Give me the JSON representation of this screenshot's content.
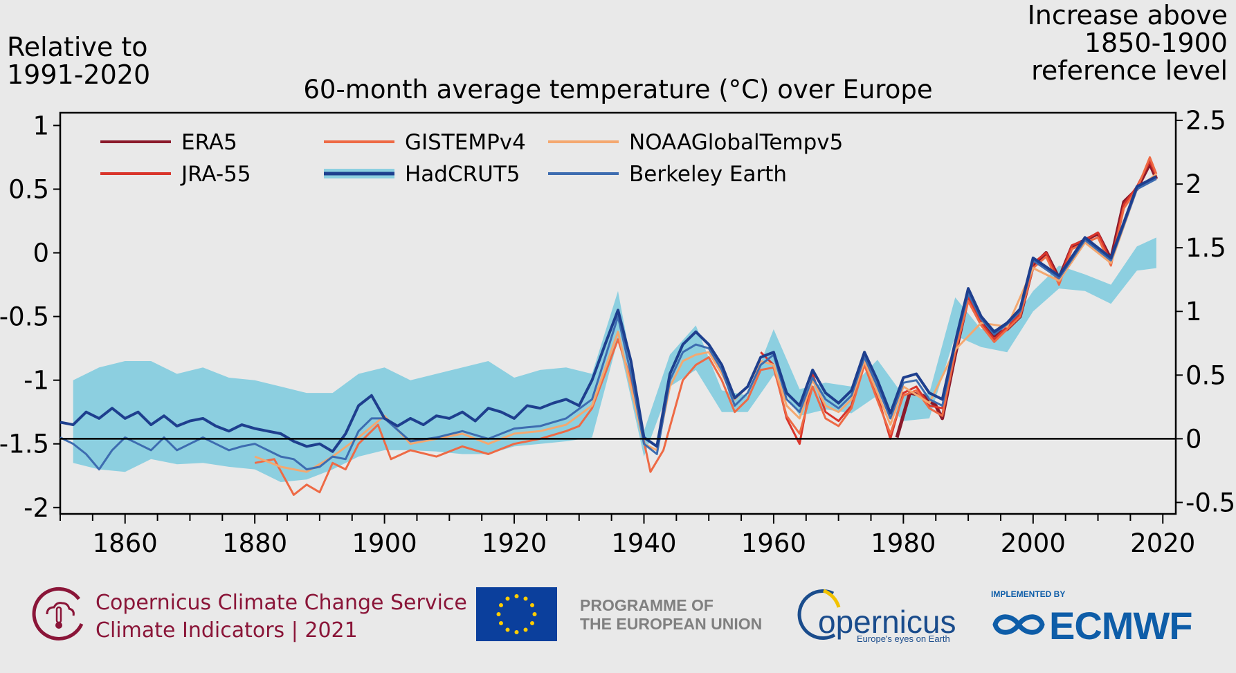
{
  "header": {
    "left_axis_label": [
      "Relative to",
      "1991-2020"
    ],
    "right_axis_label": [
      "Increase above",
      "1850-1900",
      "reference level"
    ]
  },
  "chart_data": {
    "type": "line",
    "title": "60-month average temperature (°C) over Europe",
    "xlabel": "",
    "ylabel": "Relative to 1991-2020",
    "y2label": "Increase above 1850-1900 reference level",
    "xlim": [
      1850,
      2022
    ],
    "ylim": [
      -2.05,
      1.1
    ],
    "y2_offset": 1.46,
    "x_ticks": [
      1860,
      1880,
      1900,
      1920,
      1940,
      1960,
      1980,
      2000,
      2020
    ],
    "y_ticks": [
      1,
      0.5,
      0,
      -0.5,
      -1,
      -1.5,
      -2
    ],
    "y_tick_labels": [
      "1",
      "0.5",
      "0",
      "-0.5",
      "-1",
      "-1.5",
      "-2"
    ],
    "y2_ticks": [
      2.5,
      2,
      1.5,
      1,
      0.5,
      0,
      -0.5
    ],
    "y2_tick_labels": [
      "2.5",
      "2",
      "1.5",
      "1",
      "0.5",
      "0",
      "-0.5"
    ],
    "reference_line_y": -1.46,
    "grid": false,
    "legend_position": "top-left",
    "legend": [
      {
        "name": "ERA5",
        "color": "#8b1a2b"
      },
      {
        "name": "JRA-55",
        "color": "#d9352b"
      },
      {
        "name": "GISTEMPv4",
        "color": "#ee6a45"
      },
      {
        "name": "HadCRUT5",
        "color": "#1e3f8e",
        "band_color": "#8ccfe0"
      },
      {
        "name": "NOAAGlobalTempv5",
        "color": "#f4a870"
      },
      {
        "name": "Berkeley Earth",
        "color": "#3d6cb0"
      }
    ],
    "uncertainty_band": {
      "series": "HadCRUT5",
      "x": [
        1852,
        1856,
        1860,
        1864,
        1868,
        1872,
        1876,
        1880,
        1884,
        1888,
        1892,
        1896,
        1900,
        1904,
        1908,
        1912,
        1916,
        1920,
        1924,
        1928,
        1932,
        1936,
        1940,
        1944,
        1948,
        1952,
        1956,
        1960,
        1964,
        1968,
        1972,
        1976,
        1980,
        1984,
        1988,
        1992,
        1996,
        2000,
        2004,
        2008,
        2012,
        2016,
        2019
      ],
      "lower": [
        -1.65,
        -1.7,
        -1.72,
        -1.62,
        -1.66,
        -1.65,
        -1.68,
        -1.7,
        -1.8,
        -1.78,
        -1.7,
        -1.6,
        -1.55,
        -1.55,
        -1.56,
        -1.58,
        -1.58,
        -1.52,
        -1.5,
        -1.48,
        -1.45,
        -0.68,
        -1.6,
        -1.05,
        -0.92,
        -1.25,
        -1.25,
        -0.96,
        -1.28,
        -1.23,
        -1.26,
        -1.12,
        -1.32,
        -1.3,
        -0.65,
        -0.74,
        -0.78,
        -0.46,
        -0.28,
        -0.3,
        -0.4,
        -0.14,
        -0.12
      ],
      "upper": [
        -1.0,
        -0.9,
        -0.85,
        -0.85,
        -0.95,
        -0.9,
        -0.98,
        -1.0,
        -1.05,
        -1.1,
        -1.1,
        -0.95,
        -0.9,
        -1.0,
        -0.95,
        -0.9,
        -0.85,
        -0.98,
        -0.92,
        -0.9,
        -0.95,
        -0.3,
        -1.4,
        -0.8,
        -0.57,
        -1.08,
        -1.12,
        -0.6,
        -1.07,
        -1.02,
        -1.05,
        -0.84,
        -1.12,
        -1.1,
        -0.35,
        -0.6,
        -0.6,
        -0.3,
        -0.1,
        -0.17,
        -0.25,
        0.05,
        0.12
      ]
    },
    "series": [
      {
        "name": "ERA5",
        "color": "#8b1a2b",
        "width": 5,
        "x": [
          1979,
          1981,
          1983,
          1985,
          1986,
          1988,
          1990,
          1992,
          1994,
          1996,
          1998,
          2000,
          2002,
          2004,
          2006,
          2008,
          2010,
          2012,
          2014,
          2016,
          2018,
          2019
        ],
        "y": [
          -1.45,
          -1.1,
          -1.12,
          -1.2,
          -1.3,
          -0.8,
          -0.35,
          -0.55,
          -0.65,
          -0.6,
          -0.5,
          -0.1,
          0.0,
          -0.2,
          0.05,
          0.1,
          0.15,
          -0.05,
          0.4,
          0.5,
          0.7,
          0.58
        ]
      },
      {
        "name": "JRA-55",
        "color": "#d9352b",
        "width": 3,
        "x": [
          1958,
          1960,
          1962,
          1964,
          1966,
          1968,
          1970,
          1972,
          1974,
          1976,
          1978,
          1980,
          1982,
          1984,
          1986,
          1988,
          1990,
          1992,
          1994,
          1996,
          1998,
          2000,
          2002,
          2004,
          2006,
          2008,
          2010,
          2012,
          2014,
          2016,
          2018,
          2019
        ],
        "y": [
          -0.78,
          -0.88,
          -1.3,
          -1.5,
          -0.95,
          -1.25,
          -1.32,
          -1.2,
          -0.82,
          -1.12,
          -1.46,
          -1.1,
          -1.05,
          -1.2,
          -1.22,
          -0.75,
          -0.35,
          -0.55,
          -0.68,
          -0.58,
          -0.48,
          -0.08,
          0.0,
          -0.22,
          0.06,
          0.1,
          0.16,
          -0.08,
          0.38,
          0.52,
          0.72,
          0.6
        ]
      },
      {
        "name": "GISTEMPv4",
        "color": "#ee6a45",
        "width": 3,
        "x": [
          1880,
          1883,
          1886,
          1888,
          1890,
          1892,
          1894,
          1896,
          1899,
          1901,
          1904,
          1908,
          1912,
          1916,
          1920,
          1924,
          1928,
          1930,
          1932,
          1934,
          1936,
          1938,
          1941,
          1943,
          1946,
          1948,
          1950,
          1952,
          1954,
          1956,
          1958,
          1960,
          1962,
          1964,
          1966,
          1968,
          1970,
          1972,
          1974,
          1976,
          1978,
          1980,
          1982,
          1984,
          1986,
          1988,
          1990,
          1992,
          1994,
          1996,
          1998,
          2000,
          2002,
          2004,
          2006,
          2008,
          2010,
          2012,
          2014,
          2016,
          2018,
          2019
        ],
        "y": [
          -1.65,
          -1.62,
          -1.9,
          -1.82,
          -1.88,
          -1.65,
          -1.7,
          -1.5,
          -1.35,
          -1.62,
          -1.55,
          -1.6,
          -1.52,
          -1.58,
          -1.5,
          -1.46,
          -1.4,
          -1.36,
          -1.22,
          -0.95,
          -0.68,
          -1.0,
          -1.72,
          -1.55,
          -1.0,
          -0.88,
          -0.82,
          -1.0,
          -1.25,
          -1.15,
          -0.92,
          -0.9,
          -1.28,
          -1.42,
          -1.05,
          -1.3,
          -1.36,
          -1.22,
          -0.88,
          -1.16,
          -1.42,
          -1.12,
          -1.08,
          -1.22,
          -1.28,
          -0.78,
          -0.38,
          -0.57,
          -0.7,
          -0.6,
          -0.5,
          -0.12,
          -0.03,
          -0.25,
          0.03,
          0.08,
          0.12,
          -0.1,
          0.35,
          0.5,
          0.75,
          0.62
        ]
      },
      {
        "name": "NOAAGlobalTempv5",
        "color": "#f4a870",
        "width": 3,
        "x": [
          1880,
          1884,
          1888,
          1892,
          1896,
          1900,
          1904,
          1908,
          1912,
          1916,
          1920,
          1924,
          1928,
          1932,
          1936,
          1940,
          1942,
          1944,
          1946,
          1948,
          1950,
          1952,
          1954,
          1956,
          1958,
          1960,
          1962,
          1964,
          1966,
          1968,
          1970,
          1972,
          1974,
          1976,
          1978,
          1980,
          1984,
          1988,
          1992,
          1996,
          2000,
          2004,
          2008,
          2012,
          2016,
          2019
        ],
        "y": [
          -1.6,
          -1.68,
          -1.72,
          -1.6,
          -1.45,
          -1.28,
          -1.5,
          -1.46,
          -1.42,
          -1.5,
          -1.42,
          -1.4,
          -1.35,
          -1.2,
          -0.62,
          -1.5,
          -1.55,
          -1.05,
          -0.85,
          -0.8,
          -0.78,
          -0.95,
          -1.15,
          -1.05,
          -0.85,
          -0.88,
          -1.2,
          -1.3,
          -1.0,
          -1.2,
          -1.25,
          -1.15,
          -0.85,
          -1.1,
          -1.35,
          -1.05,
          -1.18,
          -0.76,
          -0.55,
          -0.58,
          -0.12,
          -0.22,
          0.08,
          -0.08,
          0.5,
          0.62
        ]
      },
      {
        "name": "Berkeley Earth",
        "color": "#3d6cb0",
        "width": 3,
        "x": [
          1850,
          1852,
          1854,
          1856,
          1858,
          1860,
          1862,
          1864,
          1866,
          1868,
          1870,
          1872,
          1874,
          1876,
          1878,
          1880,
          1882,
          1884,
          1886,
          1888,
          1890,
          1892,
          1894,
          1896,
          1898,
          1900,
          1904,
          1908,
          1912,
          1916,
          1920,
          1924,
          1928,
          1932,
          1936,
          1938,
          1940,
          1942,
          1944,
          1946,
          1948,
          1950,
          1952,
          1954,
          1956,
          1958,
          1960,
          1962,
          1964,
          1966,
          1968,
          1970,
          1972,
          1974,
          1976,
          1978,
          1980,
          1982,
          1984,
          1986,
          1988,
          1990,
          1992,
          1994,
          1996,
          1998,
          2000,
          2004,
          2008,
          2012,
          2016,
          2019
        ],
        "y": [
          -1.45,
          -1.5,
          -1.58,
          -1.7,
          -1.55,
          -1.45,
          -1.5,
          -1.55,
          -1.45,
          -1.55,
          -1.5,
          -1.45,
          -1.5,
          -1.55,
          -1.52,
          -1.5,
          -1.55,
          -1.6,
          -1.62,
          -1.7,
          -1.68,
          -1.6,
          -1.62,
          -1.4,
          -1.3,
          -1.3,
          -1.48,
          -1.45,
          -1.4,
          -1.46,
          -1.38,
          -1.36,
          -1.3,
          -1.15,
          -0.5,
          -0.95,
          -1.5,
          -1.58,
          -1.0,
          -0.78,
          -0.72,
          -0.75,
          -0.92,
          -1.2,
          -1.1,
          -0.88,
          -0.8,
          -1.15,
          -1.25,
          -0.98,
          -1.15,
          -1.22,
          -1.12,
          -0.82,
          -1.05,
          -1.3,
          -1.02,
          -1.0,
          -1.15,
          -1.2,
          -0.72,
          -0.32,
          -0.52,
          -0.64,
          -0.56,
          -0.46,
          -0.06,
          -0.2,
          0.1,
          -0.06,
          0.5,
          0.58
        ]
      },
      {
        "name": "HadCRUT5",
        "color": "#1e3f8e",
        "width": 4,
        "x": [
          1850,
          1852,
          1854,
          1856,
          1858,
          1860,
          1862,
          1864,
          1866,
          1868,
          1870,
          1872,
          1874,
          1876,
          1878,
          1880,
          1882,
          1884,
          1886,
          1888,
          1890,
          1892,
          1894,
          1896,
          1898,
          1900,
          1902,
          1904,
          1906,
          1908,
          1910,
          1912,
          1914,
          1916,
          1918,
          1920,
          1922,
          1924,
          1926,
          1928,
          1930,
          1932,
          1934,
          1936,
          1938,
          1940,
          1942,
          1944,
          1946,
          1948,
          1950,
          1952,
          1954,
          1956,
          1958,
          1960,
          1962,
          1964,
          1966,
          1968,
          1970,
          1972,
          1974,
          1976,
          1978,
          1980,
          1982,
          1984,
          1986,
          1988,
          1990,
          1992,
          1994,
          1996,
          1998,
          2000,
          2004,
          2008,
          2012,
          2016,
          2019
        ],
        "y": [
          -1.33,
          -1.35,
          -1.25,
          -1.3,
          -1.22,
          -1.3,
          -1.25,
          -1.35,
          -1.28,
          -1.36,
          -1.32,
          -1.3,
          -1.36,
          -1.4,
          -1.35,
          -1.38,
          -1.4,
          -1.42,
          -1.48,
          -1.52,
          -1.5,
          -1.56,
          -1.42,
          -1.2,
          -1.12,
          -1.3,
          -1.36,
          -1.3,
          -1.35,
          -1.28,
          -1.3,
          -1.25,
          -1.32,
          -1.22,
          -1.25,
          -1.3,
          -1.2,
          -1.22,
          -1.18,
          -1.15,
          -1.2,
          -1.0,
          -0.72,
          -0.45,
          -0.85,
          -1.45,
          -1.52,
          -0.95,
          -0.72,
          -0.62,
          -0.72,
          -0.88,
          -1.14,
          -1.05,
          -0.82,
          -0.78,
          -1.1,
          -1.2,
          -0.92,
          -1.1,
          -1.18,
          -1.08,
          -0.78,
          -1.0,
          -1.26,
          -0.98,
          -0.95,
          -1.1,
          -1.15,
          -0.7,
          -0.28,
          -0.5,
          -0.62,
          -0.55,
          -0.44,
          -0.04,
          -0.18,
          0.12,
          -0.04,
          0.52,
          0.6
        ]
      }
    ]
  },
  "footer": {
    "c3s_line1": "Copernicus Climate Change Service",
    "c3s_line2": "Climate Indicators | 2021",
    "programme_line1": "PROGRAMME OF",
    "programme_line2": "THE EUROPEAN UNION",
    "copernicus_name": "opernicus",
    "copernicus_tagline": "Europe's eyes on Earth",
    "ecmwf_implemented": "IMPLEMENTED BY",
    "ecmwf_name": "ECMWF"
  }
}
